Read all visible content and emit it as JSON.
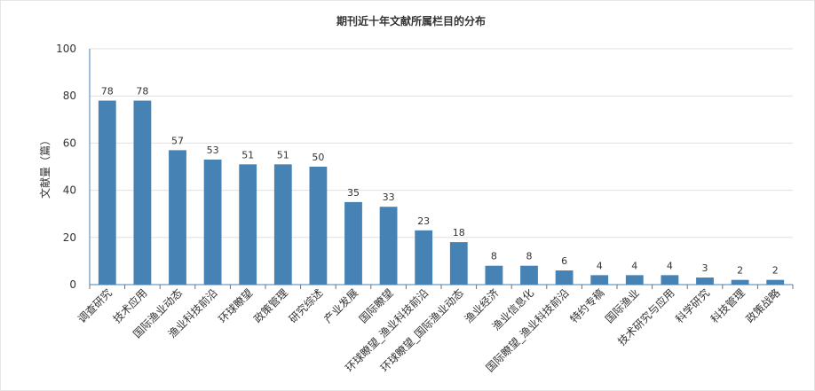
{
  "chart_data": {
    "type": "bar",
    "title": "期刊近十年文献所属栏目的分布",
    "xlabel": "",
    "ylabel": "文献量（篇）",
    "ylim": [
      0,
      100
    ],
    "yticks": [
      0,
      20,
      40,
      60,
      80,
      100
    ],
    "grid": true,
    "bar_color": "#4682b4",
    "categories": [
      "调查研究",
      "技术应用",
      "国际渔业动态",
      "渔业科技前沿",
      "环球瞭望",
      "政策管理",
      "研究综述",
      "产业发展",
      "国际瞭望",
      "环球瞭望_渔业科技前沿",
      "环球瞭望_国际渔业动态",
      "渔业经济",
      "渔业信息化",
      "国际瞭望_渔业科技前沿",
      "特约专稿",
      "国际渔业",
      "技术研究与应用",
      "科学研究",
      "科技管理",
      "政策战略"
    ],
    "values": [
      78,
      78,
      57,
      53,
      51,
      51,
      50,
      35,
      33,
      23,
      18,
      8,
      8,
      6,
      4,
      4,
      4,
      3,
      2,
      2
    ]
  }
}
